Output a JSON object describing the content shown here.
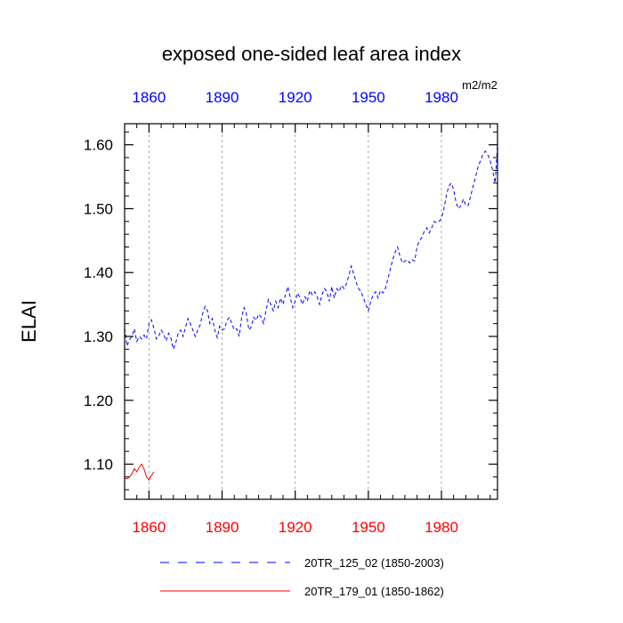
{
  "chart_data": {
    "type": "line",
    "title": "exposed one-sided leaf area index",
    "ylabel": "ELAI",
    "units": "m2/m2",
    "xlim": [
      1850,
      2003
    ],
    "ylim": [
      1.045,
      1.633
    ],
    "xticks": [
      1860,
      1890,
      1920,
      1950,
      1980
    ],
    "xtick_labels": [
      "1860",
      "1890",
      "1920",
      "1950",
      "1980"
    ],
    "yticks": [
      1.1,
      1.2,
      1.3,
      1.4,
      1.5,
      1.6
    ],
    "ytick_labels": [
      "1.10",
      "1.20",
      "1.30",
      "1.40",
      "1.50",
      "1.60"
    ],
    "grid": "vertical-dashed",
    "colors": {
      "top_axis_labels": "#0000ff",
      "bottom_axis_labels": "#ff0000"
    },
    "series": [
      {
        "name": "20TR_125_02 (1850-2003)",
        "color": "#0000ff",
        "style": "dashed",
        "x_start": 1850,
        "values": [
          1.313,
          1.285,
          1.295,
          1.3,
          1.312,
          1.292,
          1.3,
          1.296,
          1.302,
          1.296,
          1.32,
          1.326,
          1.313,
          1.296,
          1.3,
          1.31,
          1.304,
          1.293,
          1.305,
          1.297,
          1.28,
          1.29,
          1.305,
          1.31,
          1.3,
          1.315,
          1.328,
          1.32,
          1.31,
          1.3,
          1.31,
          1.318,
          1.335,
          1.347,
          1.34,
          1.32,
          1.328,
          1.31,
          1.298,
          1.316,
          1.31,
          1.312,
          1.325,
          1.33,
          1.32,
          1.31,
          1.312,
          1.3,
          1.33,
          1.345,
          1.335,
          1.31,
          1.315,
          1.33,
          1.325,
          1.335,
          1.33,
          1.32,
          1.34,
          1.358,
          1.35,
          1.34,
          1.355,
          1.345,
          1.36,
          1.35,
          1.365,
          1.378,
          1.36,
          1.345,
          1.355,
          1.368,
          1.36,
          1.35,
          1.362,
          1.355,
          1.372,
          1.365,
          1.37,
          1.362,
          1.35,
          1.365,
          1.375,
          1.37,
          1.355,
          1.378,
          1.36,
          1.375,
          1.37,
          1.38,
          1.375,
          1.382,
          1.395,
          1.41,
          1.398,
          1.385,
          1.375,
          1.37,
          1.36,
          1.35,
          1.34,
          1.355,
          1.365,
          1.37,
          1.36,
          1.372,
          1.368,
          1.375,
          1.39,
          1.405,
          1.42,
          1.432,
          1.44,
          1.425,
          1.415,
          1.418,
          1.42,
          1.415,
          1.42,
          1.418,
          1.44,
          1.45,
          1.455,
          1.465,
          1.47,
          1.462,
          1.47,
          1.48,
          1.478,
          1.48,
          1.485,
          1.5,
          1.52,
          1.535,
          1.54,
          1.53,
          1.51,
          1.5,
          1.505,
          1.515,
          1.505,
          1.505,
          1.52,
          1.535,
          1.55,
          1.565,
          1.575,
          1.585,
          1.59,
          1.585,
          1.575,
          1.56,
          1.54,
          1.6
        ]
      },
      {
        "name": "20TR_179_01 (1850-1862)",
        "color": "#ff0000",
        "style": "solid",
        "x_start": 1850,
        "values": [
          1.078,
          1.077,
          1.08,
          1.085,
          1.093,
          1.088,
          1.095,
          1.1,
          1.092,
          1.08,
          1.075,
          1.082,
          1.088
        ]
      }
    ]
  }
}
